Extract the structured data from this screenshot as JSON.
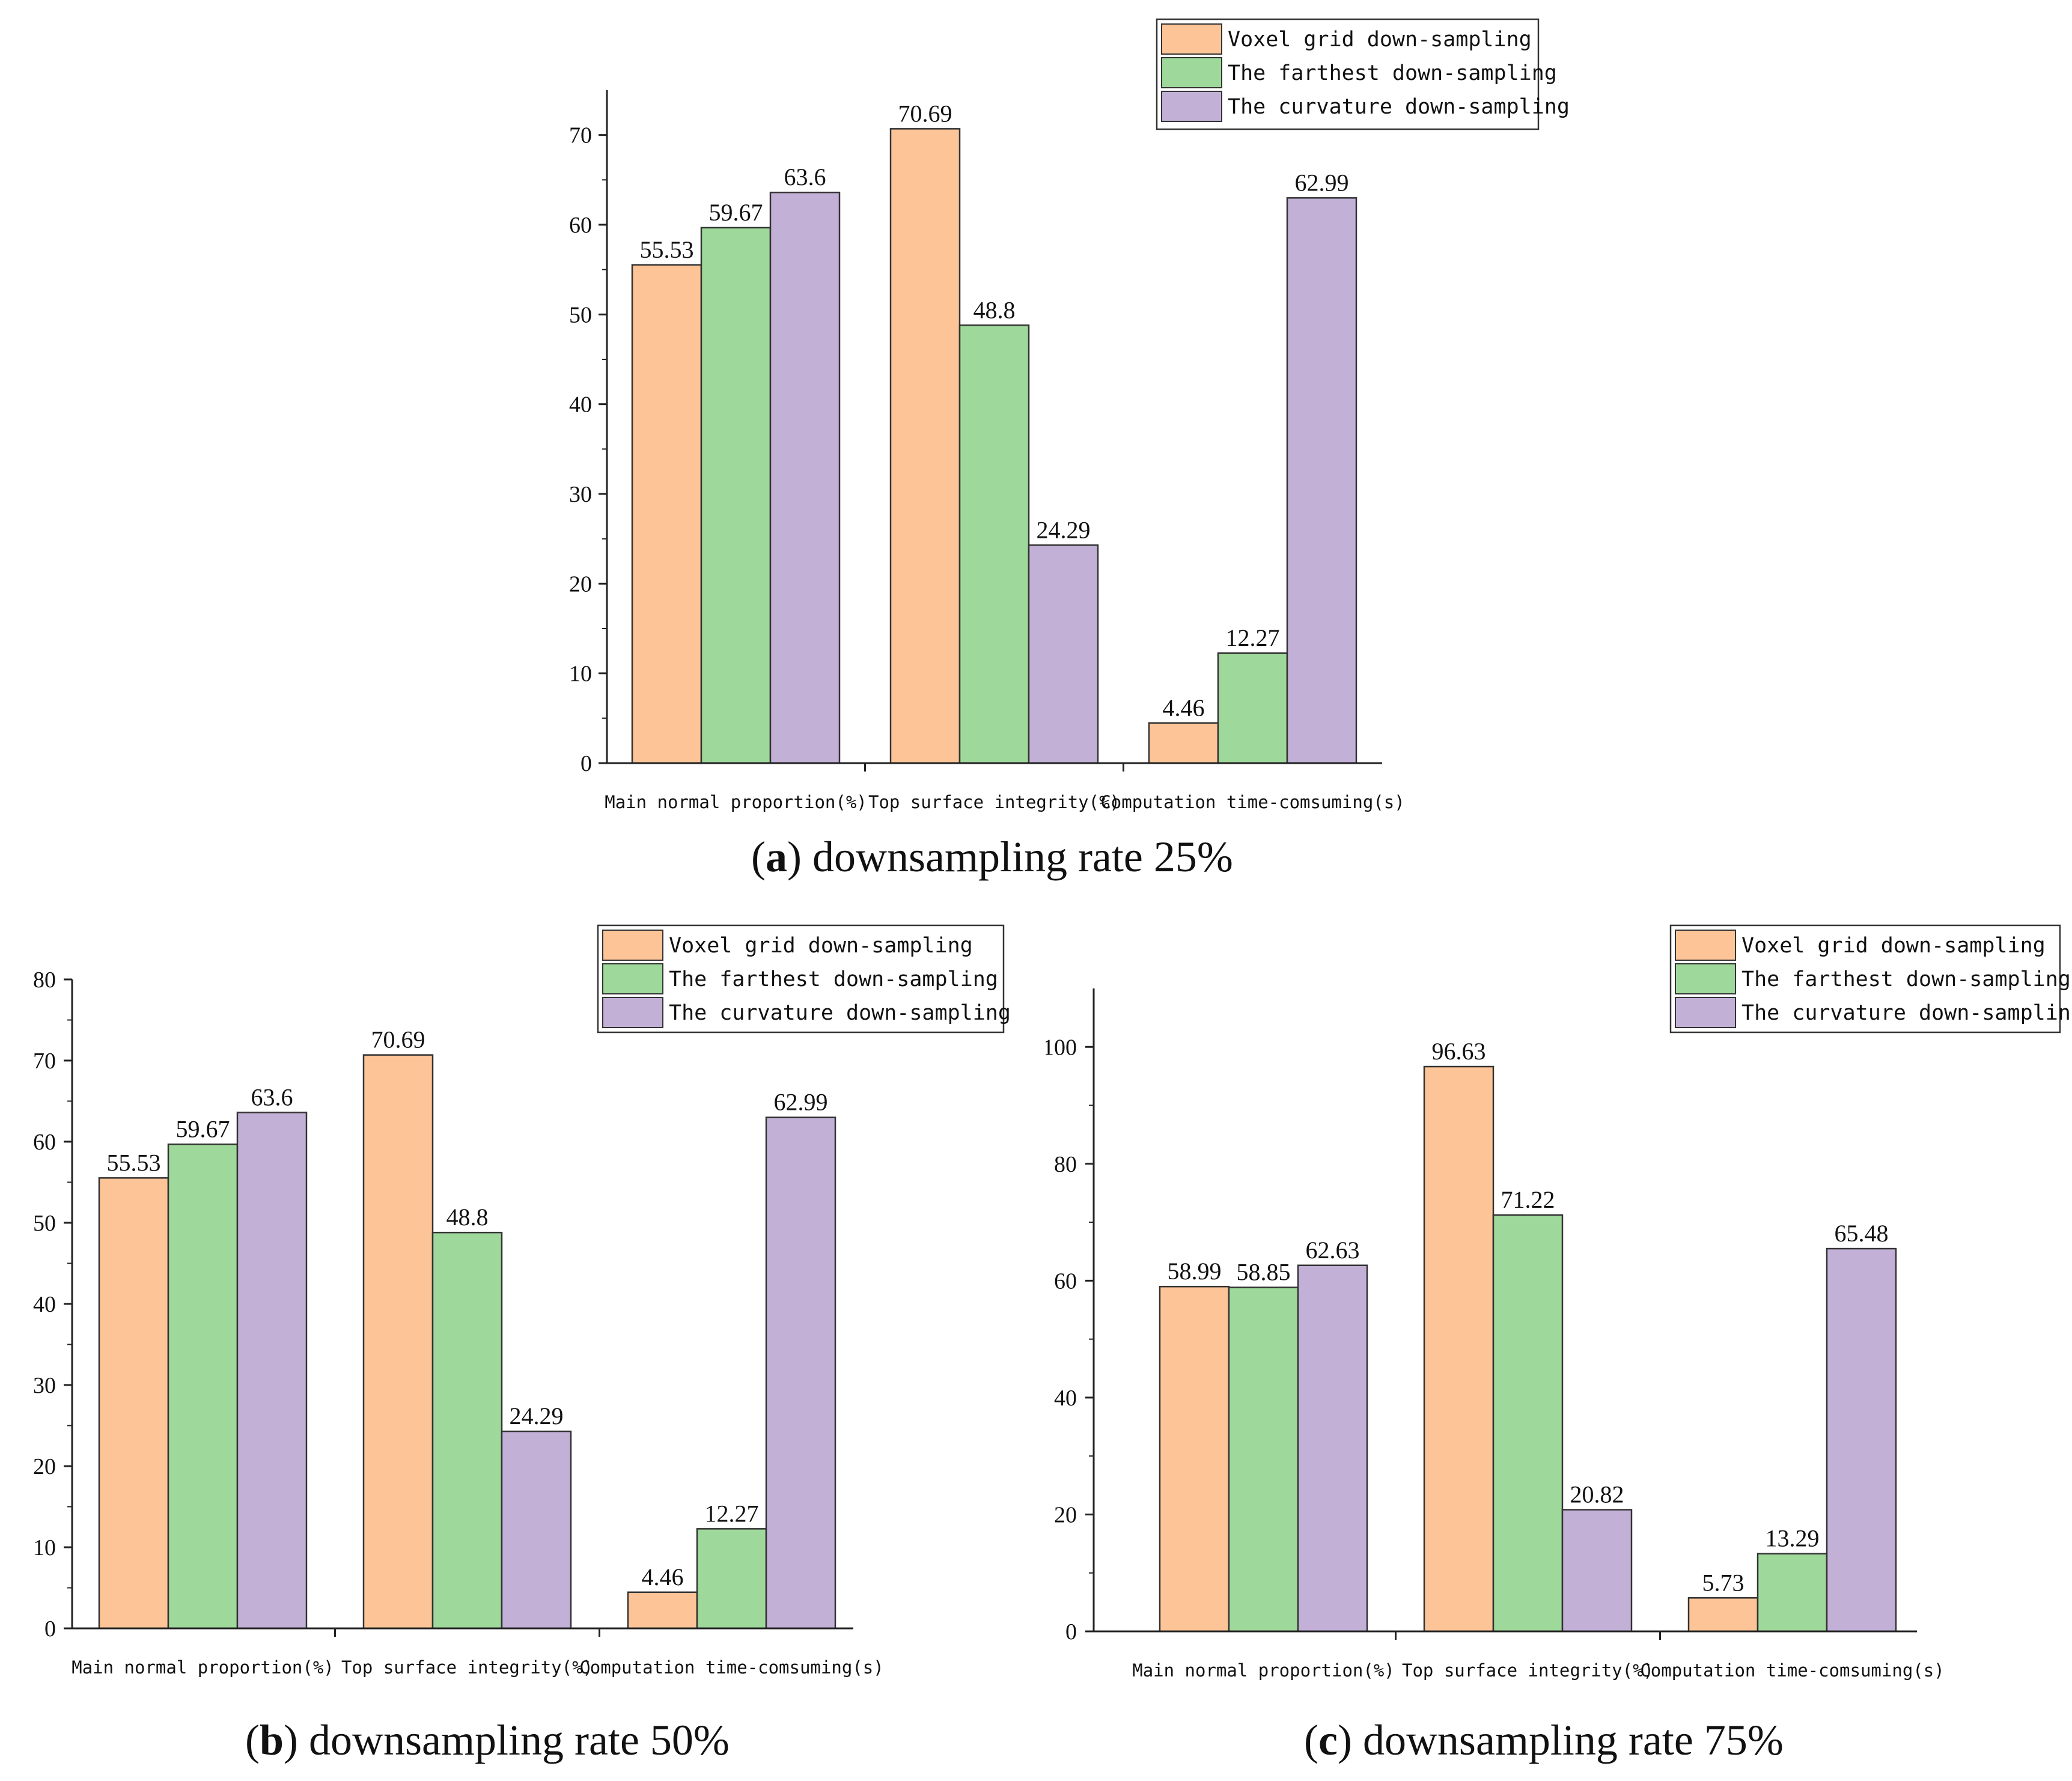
{
  "legend": {
    "series": [
      "Voxel grid down-sampling",
      "The farthest down-sampling",
      "The curvature down-sampling"
    ],
    "colors": [
      "#fcc497",
      "#9ed89a",
      "#c2b0d7"
    ]
  },
  "chart_data": [
    {
      "type": "bar",
      "caption_letter": "a",
      "caption_text": "downsampling rate 25%",
      "categories": [
        "Main normal proportion(%)",
        "Top surface integrity(%)",
        "Computation time-comsuming(s)"
      ],
      "series": [
        {
          "name": "Voxel grid down-sampling",
          "values": [
            55.53,
            70.69,
            4.46
          ]
        },
        {
          "name": "The farthest down-sampling",
          "values": [
            59.67,
            48.8,
            12.27
          ]
        },
        {
          "name": "The curvature down-sampling",
          "values": [
            63.6,
            24.29,
            62.99
          ]
        }
      ],
      "value_labels": [
        [
          "55.53",
          "70.69",
          "4.46"
        ],
        [
          "59.67",
          "48.8",
          "12.27"
        ],
        [
          "63.6",
          "24.29",
          "62.99"
        ]
      ],
      "ylim": [
        0,
        75
      ],
      "yticks": [
        0,
        10,
        20,
        30,
        40,
        50,
        60,
        70
      ],
      "ytick_labels": [
        "0",
        "10",
        "20",
        "30",
        "40",
        "50",
        "60",
        "70"
      ]
    },
    {
      "type": "bar",
      "caption_letter": "b",
      "caption_text": "downsampling rate 50%",
      "categories": [
        "Main normal proportion(%)",
        "Top surface integrity(%)",
        "Computation time-comsuming(s)"
      ],
      "series": [
        {
          "name": "Voxel grid down-sampling",
          "values": [
            55.53,
            70.69,
            4.46
          ]
        },
        {
          "name": "The farthest down-sampling",
          "values": [
            59.67,
            48.8,
            12.27
          ]
        },
        {
          "name": "The curvature down-sampling",
          "values": [
            63.6,
            24.29,
            62.99
          ]
        }
      ],
      "value_labels": [
        [
          "55.53",
          "70.69",
          "4.46"
        ],
        [
          "59.67",
          "48.8",
          "12.27"
        ],
        [
          "63.6",
          "24.29",
          "62.99"
        ]
      ],
      "ylim": [
        0,
        80
      ],
      "yticks": [
        0,
        10,
        20,
        30,
        40,
        50,
        60,
        70,
        80
      ],
      "ytick_labels": [
        "0",
        "10",
        "20",
        "30",
        "40",
        "50",
        "60",
        "70",
        "80"
      ]
    },
    {
      "type": "bar",
      "caption_letter": "c",
      "caption_text": "downsampling rate 75%",
      "categories": [
        "Main normal proportion(%)",
        "Top surface integrity(%)",
        "Computation time-comsuming(s)"
      ],
      "series": [
        {
          "name": "Voxel grid down-sampling",
          "values": [
            58.99,
            96.63,
            5.73
          ]
        },
        {
          "name": "The farthest down-sampling",
          "values": [
            58.85,
            71.22,
            13.29
          ]
        },
        {
          "name": "The curvature down-sampling",
          "values": [
            62.63,
            20.82,
            65.48
          ]
        }
      ],
      "value_labels": [
        [
          "58.99",
          "96.63",
          "5.73"
        ],
        [
          "58.85",
          "71.22",
          "13.29"
        ],
        [
          "62.63",
          "20.82",
          "65.48"
        ]
      ],
      "ylim": [
        0,
        110
      ],
      "yticks": [
        0,
        20,
        40,
        60,
        80,
        100
      ],
      "ytick_labels": [
        "0",
        "20",
        "40",
        "60",
        "80",
        "100"
      ]
    }
  ]
}
